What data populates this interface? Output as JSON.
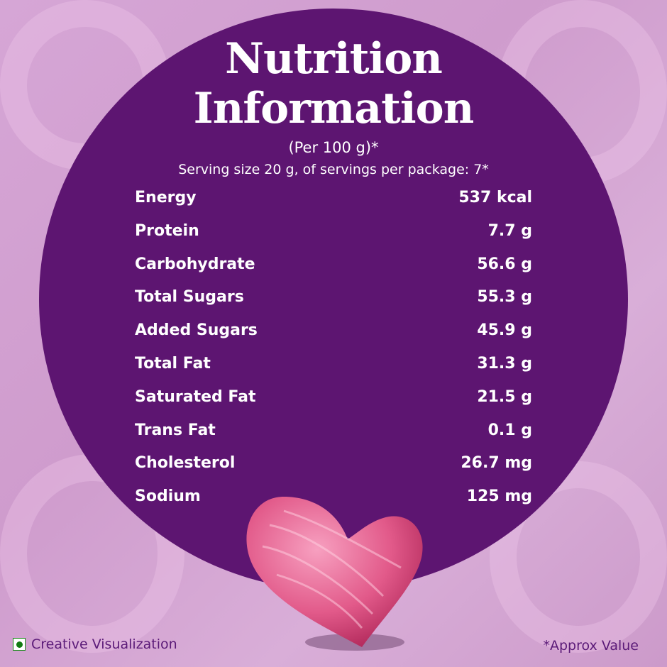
{
  "title_line1": "Nutrition",
  "title_line2": "Information",
  "per": "(Per 100 g)*",
  "serving": "Serving size 20 g, of servings per package: 7*",
  "nutrients": [
    {
      "name": "Energy",
      "value": "537 kcal"
    },
    {
      "name": "Protein",
      "value": "7.7 g"
    },
    {
      "name": "Carbohydrate",
      "value": "56.6 g"
    },
    {
      "name": "Total Sugars",
      "value": "55.3 g"
    },
    {
      "name": "Added Sugars",
      "value": "45.9 g"
    },
    {
      "name": "Total Fat",
      "value": "31.3 g"
    },
    {
      "name": "Saturated Fat",
      "value": "21.5 g"
    },
    {
      "name": "Trans Fat",
      "value": "0.1 g"
    },
    {
      "name": "Cholesterol",
      "value": "26.7 mg"
    },
    {
      "name": "Sodium",
      "value": "125 mg"
    }
  ],
  "footer": {
    "left": "Creative Visualization",
    "right": "*Approx Value"
  },
  "colors": {
    "circle": "#5d1571",
    "background": "#d6a6d6",
    "heart": "#e25a8a"
  }
}
